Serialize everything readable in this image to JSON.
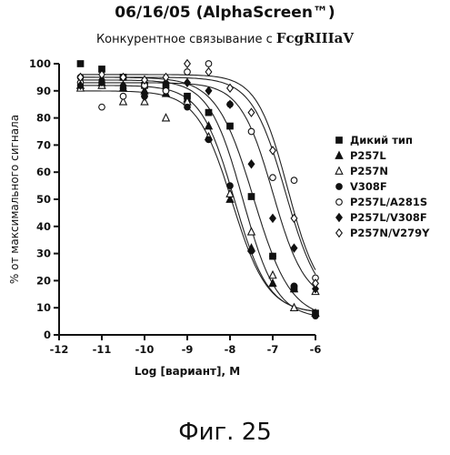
{
  "header": {
    "title": "06/16/05 (AlphaScreen™)",
    "subtitle_prefix": "Конкурентное связывание с",
    "subtitle_receptor": "FcgRIIIaV"
  },
  "caption": "Фиг. 25",
  "chart_data": {
    "type": "scatter",
    "title": "06/16/05 (AlphaScreen™)",
    "xlabel": "Log [вариант], M",
    "ylabel": "% от максимального сигнала",
    "xlim": [
      -12,
      -6
    ],
    "ylim": [
      0,
      100
    ],
    "x_ticks": [
      -12,
      -11,
      -10,
      -9,
      -8,
      -7,
      -6
    ],
    "y_ticks": [
      0,
      10,
      20,
      30,
      40,
      50,
      60,
      70,
      80,
      90,
      100
    ],
    "grid": false,
    "legend_position": "right",
    "series": [
      {
        "name": "Дикий тип",
        "marker": "square-filled",
        "points": [
          [
            -11.5,
            100
          ],
          [
            -11,
            98
          ],
          [
            -10.5,
            95
          ],
          [
            -10,
            92
          ],
          [
            -9.5,
            92
          ],
          [
            -9,
            88
          ],
          [
            -8.5,
            82
          ],
          [
            -8,
            77
          ],
          [
            -7.5,
            51
          ],
          [
            -7,
            29
          ],
          [
            -6.5,
            17
          ],
          [
            -6,
            8
          ]
        ],
        "curve": {
          "top": 95,
          "bottom": 6,
          "log_ic50": -7.45,
          "hill": 1.0
        }
      },
      {
        "name": "P257L",
        "marker": "triangle-filled",
        "points": [
          [
            -11.5,
            92
          ],
          [
            -11,
            93
          ],
          [
            -10.5,
            91
          ],
          [
            -10,
            90
          ],
          [
            -9.5,
            89
          ],
          [
            -9,
            87
          ],
          [
            -8.5,
            77
          ],
          [
            -8,
            50
          ],
          [
            -7.5,
            32
          ],
          [
            -7,
            19
          ],
          [
            -6.5,
            17
          ],
          [
            -6,
            8
          ]
        ],
        "curve": {
          "top": 92,
          "bottom": 8,
          "log_ic50": -7.9,
          "hill": 1.1
        }
      },
      {
        "name": "P257N",
        "marker": "triangle-open",
        "points": [
          [
            -11.5,
            91
          ],
          [
            -11,
            92
          ],
          [
            -10.5,
            86
          ],
          [
            -10,
            86
          ],
          [
            -9.5,
            80
          ],
          [
            -9,
            86
          ],
          [
            -8.5,
            73
          ],
          [
            -8,
            52
          ],
          [
            -7.5,
            38
          ],
          [
            -7,
            22
          ],
          [
            -6.5,
            10
          ],
          [
            -6,
            16
          ]
        ],
        "curve": {
          "top": 90,
          "bottom": 8,
          "log_ic50": -7.95,
          "hill": 1.05
        }
      },
      {
        "name": "V308F",
        "marker": "circle-filled",
        "points": [
          [
            -11.5,
            95
          ],
          [
            -11,
            93
          ],
          [
            -10.5,
            91
          ],
          [
            -10,
            88
          ],
          [
            -9.5,
            90
          ],
          [
            -9,
            84
          ],
          [
            -8.5,
            72
          ],
          [
            -8,
            55
          ],
          [
            -7.5,
            31
          ],
          [
            -7,
            29
          ],
          [
            -6.5,
            18
          ],
          [
            -6,
            7
          ]
        ],
        "curve": {
          "top": 94,
          "bottom": 6,
          "log_ic50": -7.7,
          "hill": 1.1
        }
      },
      {
        "name": "P257L/A281S",
        "marker": "circle-open",
        "points": [
          [
            -11.5,
            93
          ],
          [
            -11,
            84
          ],
          [
            -10.5,
            88
          ],
          [
            -10,
            92
          ],
          [
            -9.5,
            90
          ],
          [
            -9,
            97
          ],
          [
            -8.5,
            100
          ],
          [
            -8,
            85
          ],
          [
            -7.5,
            75
          ],
          [
            -7,
            58
          ],
          [
            -6.5,
            57
          ],
          [
            -6,
            21
          ]
        ],
        "curve": {
          "top": 95,
          "bottom": 10,
          "log_ic50": -6.7,
          "hill": 1.1
        }
      },
      {
        "name": "P257L/V308F",
        "marker": "diamond-filled",
        "points": [
          [
            -11.5,
            92
          ],
          [
            -11,
            94
          ],
          [
            -10.5,
            92
          ],
          [
            -10,
            88
          ],
          [
            -9.5,
            93
          ],
          [
            -9,
            93
          ],
          [
            -8.5,
            90
          ],
          [
            -8,
            85
          ],
          [
            -7.5,
            63
          ],
          [
            -7,
            43
          ],
          [
            -6.5,
            32
          ],
          [
            -6,
            17
          ]
        ],
        "curve": {
          "top": 93,
          "bottom": 12,
          "log_ic50": -7.0,
          "hill": 1.15
        }
      },
      {
        "name": "P257N/V279Y",
        "marker": "diamond-open",
        "points": [
          [
            -11.5,
            95
          ],
          [
            -11,
            96
          ],
          [
            -10.5,
            95
          ],
          [
            -10,
            94
          ],
          [
            -9.5,
            95
          ],
          [
            -9,
            100
          ],
          [
            -8.5,
            97
          ],
          [
            -8,
            91
          ],
          [
            -7.5,
            82
          ],
          [
            -7,
            68
          ],
          [
            -6.5,
            43
          ],
          [
            -6,
            19
          ]
        ],
        "curve": {
          "top": 96,
          "bottom": 12,
          "log_ic50": -6.65,
          "hill": 1.2
        }
      }
    ]
  }
}
